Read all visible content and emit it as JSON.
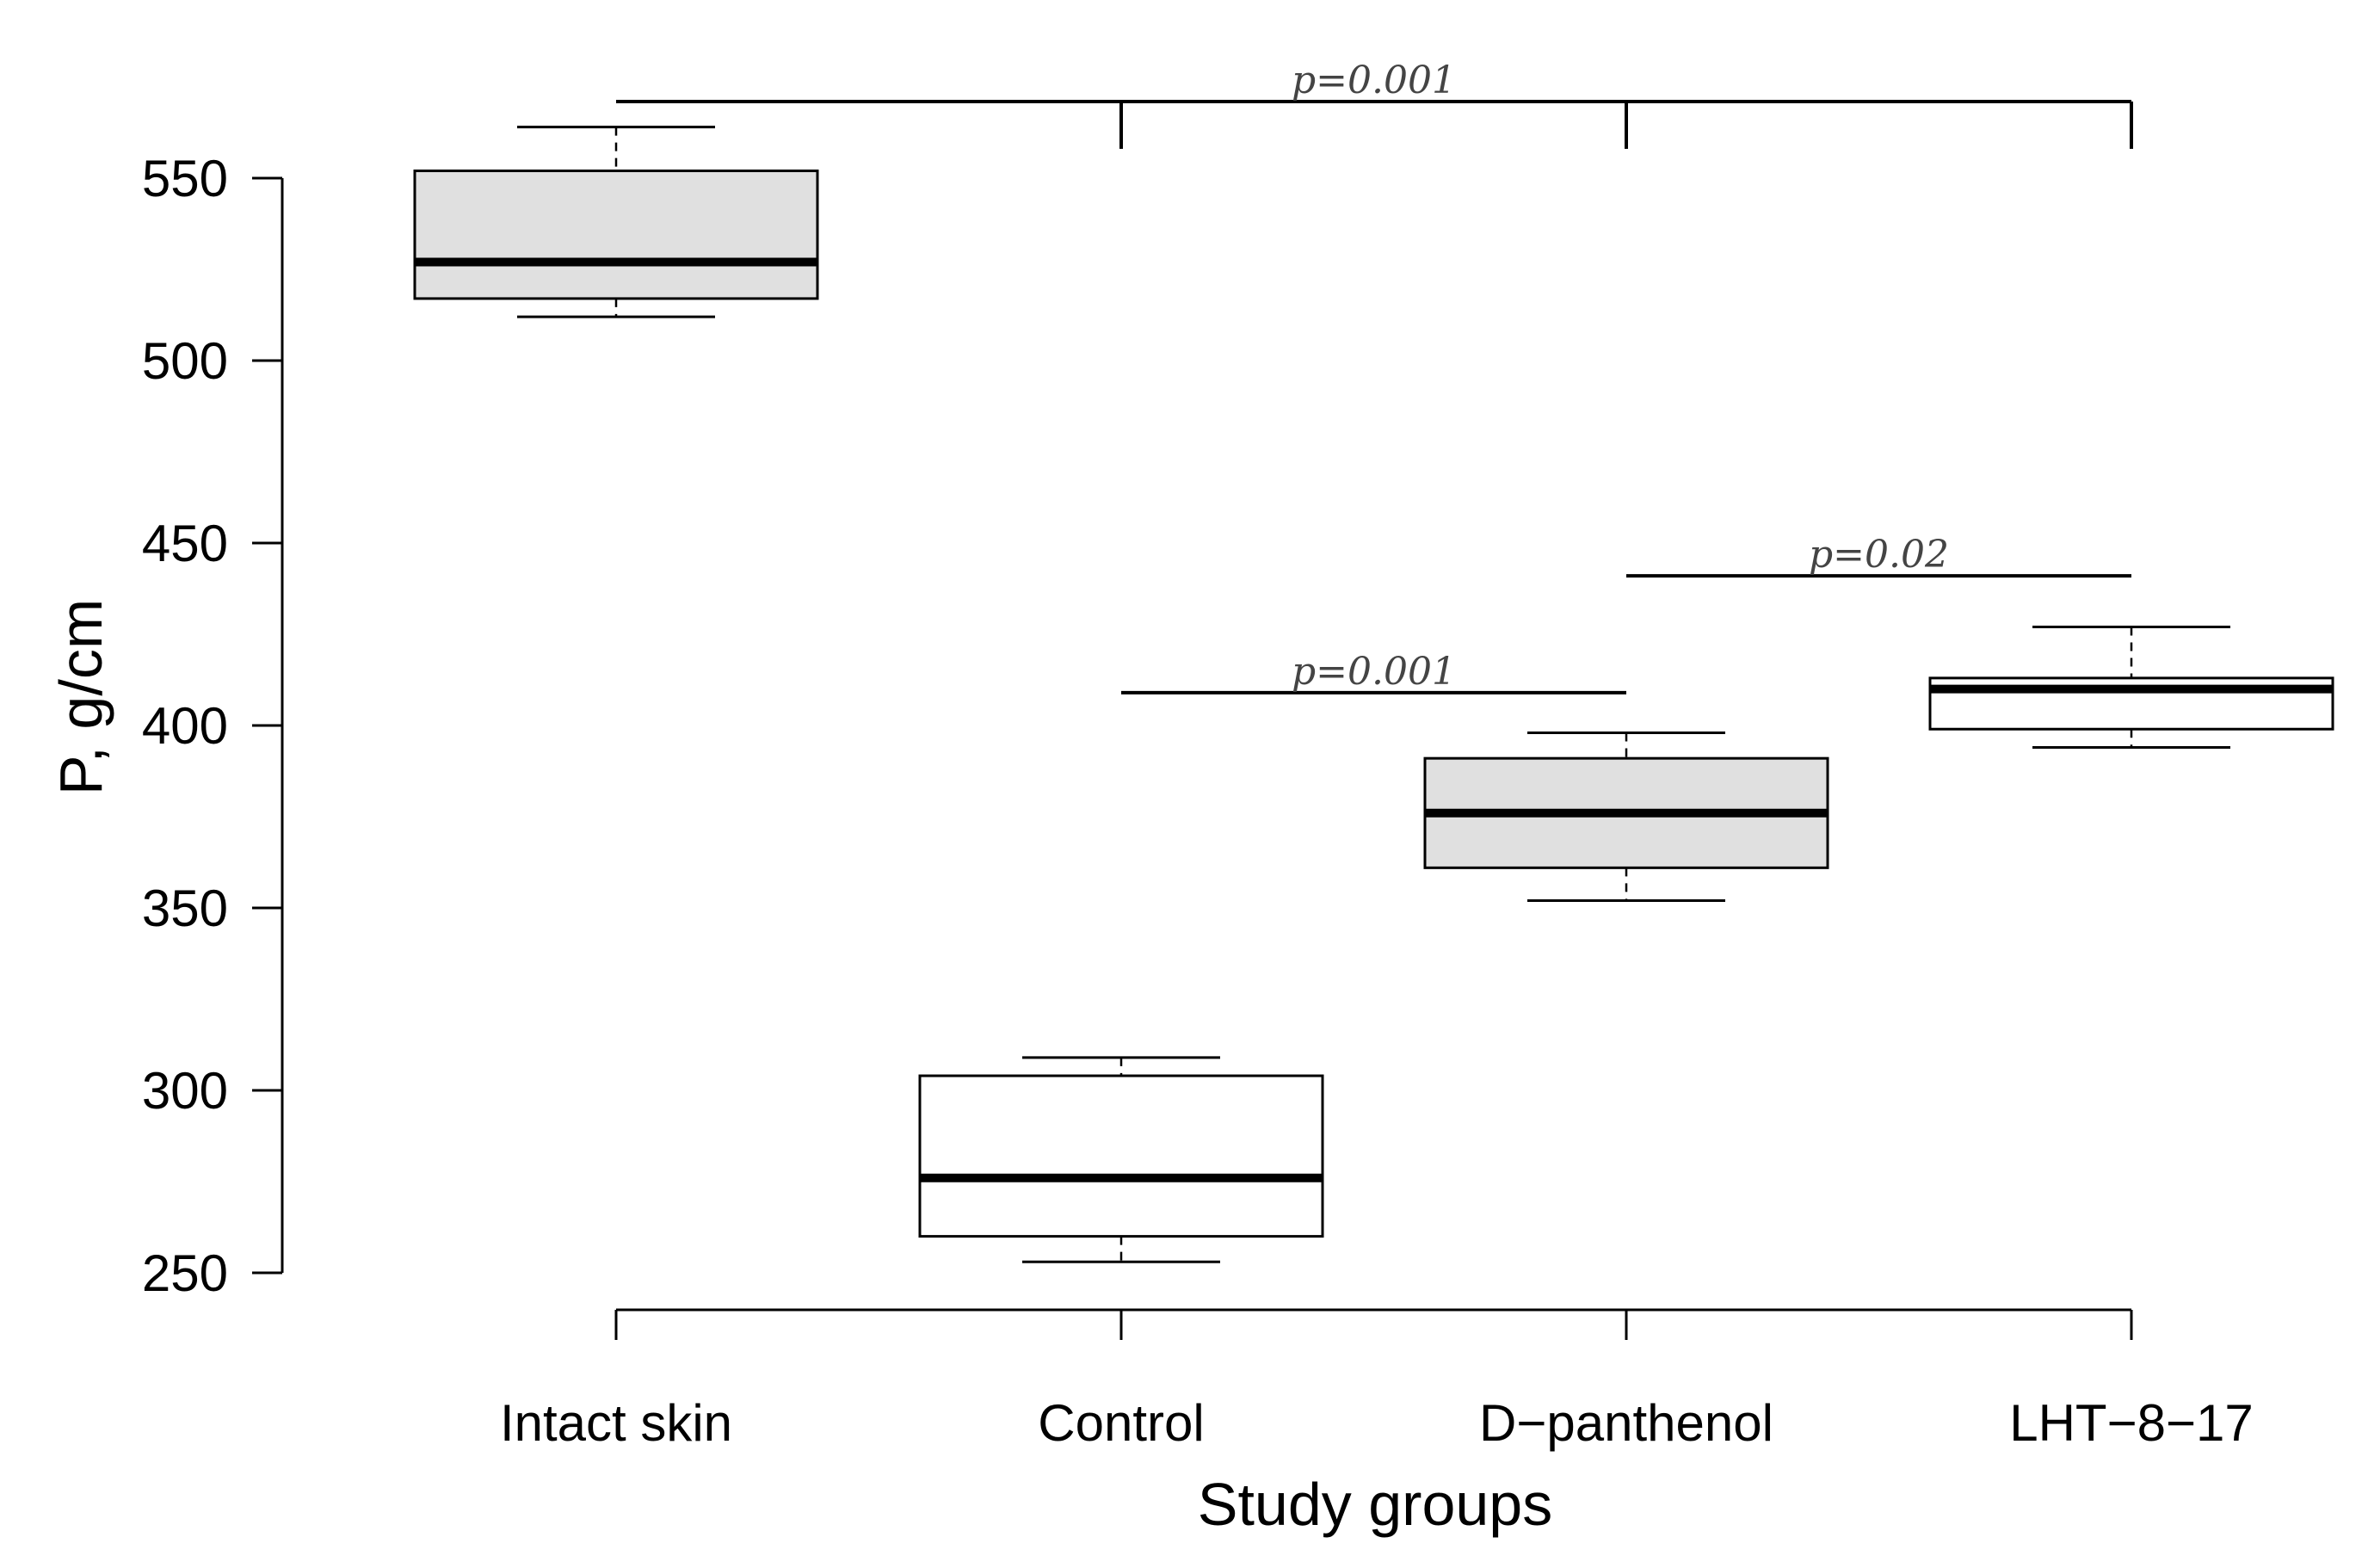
{
  "chart_data": {
    "type": "box",
    "xlabel": "Study groups",
    "ylabel": "P, g/cm",
    "ylim": [
      240,
      575
    ],
    "yticks": [
      "250",
      "300",
      "350",
      "400",
      "450",
      "500",
      "550"
    ],
    "categories": [
      "Intact skin",
      "Control",
      "D−panthenol",
      "LHT−8−17"
    ],
    "boxes": [
      {
        "category": "Intact skin",
        "whisker_low": 512,
        "q1": 517,
        "median": 527,
        "q3": 552,
        "whisker_high": 564,
        "fill": "#e0e0e0"
      },
      {
        "category": "Control",
        "whisker_low": 253,
        "q1": 260,
        "median": 276,
        "q3": 304,
        "whisker_high": 309,
        "fill": "#ffffff"
      },
      {
        "category": "D−panthenol",
        "whisker_low": 352,
        "q1": 361,
        "median": 376,
        "q3": 391,
        "whisker_high": 398,
        "fill": "#e0e0e0"
      },
      {
        "category": "LHT−8−17",
        "whisker_low": 394,
        "q1": 399,
        "median": 410,
        "q3": 413,
        "whisker_high": 427,
        "fill": "#ffffff"
      }
    ],
    "comparisons": [
      {
        "label": "p=0.001",
        "from": 0,
        "to": 3,
        "y": 571,
        "drops": [
          1,
          2,
          3
        ]
      },
      {
        "label": "p=0.001",
        "from": 1,
        "to": 2,
        "y": 409,
        "drops": []
      },
      {
        "label": "p=0.02",
        "from": 2,
        "to": 3,
        "y": 441,
        "drops": []
      }
    ],
    "grid": false,
    "legend": "none"
  }
}
